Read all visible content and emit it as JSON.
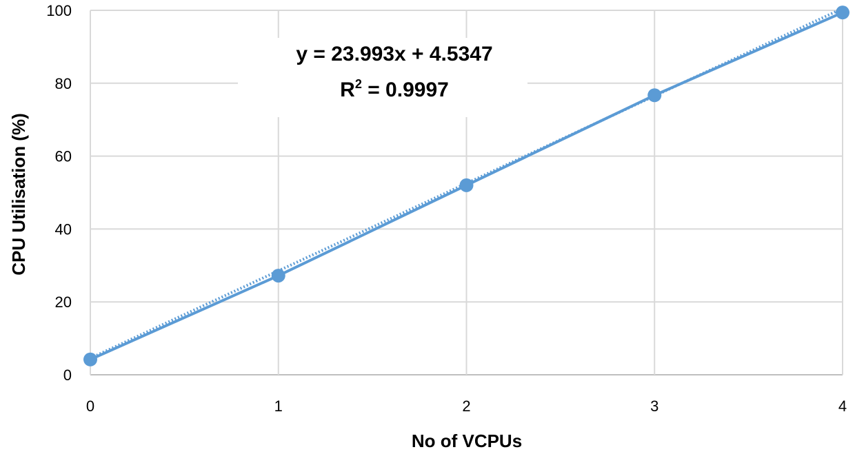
{
  "chart_data": {
    "type": "scatter",
    "xlabel": "No of VCPUs",
    "ylabel": "CPU Utilisation (%)",
    "xlim": [
      0,
      4
    ],
    "ylim": [
      0,
      100
    ],
    "x_ticks": [
      "0",
      "1",
      "2",
      "3",
      "4"
    ],
    "y_ticks": [
      "0",
      "20",
      "40",
      "60",
      "80",
      "100"
    ],
    "grid": true,
    "series": [
      {
        "x": [
          0,
          1,
          2,
          3,
          4
        ],
        "y": [
          4.2,
          27.2,
          52.0,
          76.7,
          99.4
        ],
        "color": "#5b9bd5",
        "marker": "circle",
        "line": "solid"
      }
    ],
    "trendline": {
      "kind": "linear",
      "slope": 23.993,
      "intercept": 4.5347,
      "style": "dotted",
      "color": "#5b9bd5"
    },
    "annotations": {
      "equation": "y = 23.993x + 4.5347",
      "r2_prefix": "R",
      "r2_sup": "2",
      "r2_value": " = 0.9997"
    }
  }
}
